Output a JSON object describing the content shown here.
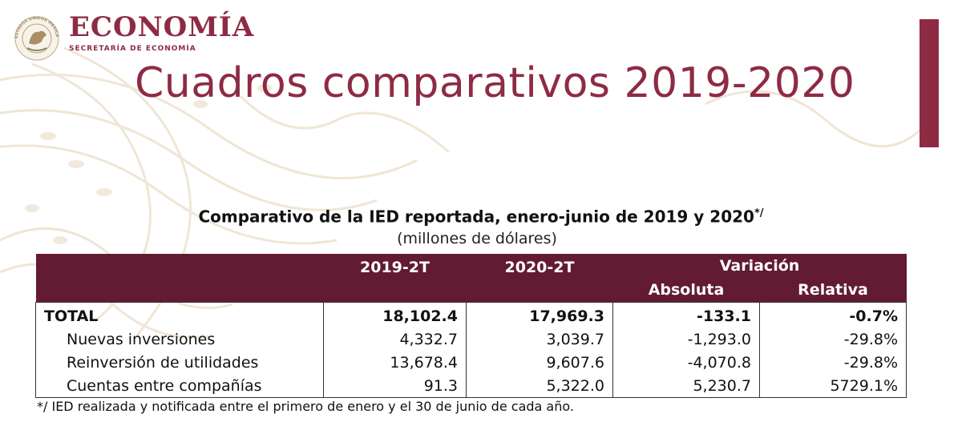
{
  "colors": {
    "brand": "#8e2b44",
    "table_header": "#621b32"
  },
  "header": {
    "brand_name": "ECONOMÍA",
    "brand_subtitle": "SECRETARÍA DE ECONOMÍA",
    "seal_text": "ESTADOS UNIDOS MEXICANOS",
    "title": "Cuadros comparativos 2019-2020"
  },
  "table": {
    "title": "Comparativo de la IED reportada, enero-junio de 2019 y 2020",
    "title_note": "*/",
    "subtitle": "(millones de dólares)",
    "columns": [
      "2019-2T",
      "2020-2T"
    ],
    "variation_label": "Variación",
    "variation_sub": [
      "Absoluta",
      "Relativa"
    ],
    "rows": [
      {
        "label": "TOTAL",
        "v2019": "18,102.4",
        "v2020": "17,969.3",
        "abs": "-133.1",
        "rel": "-0.7%"
      },
      {
        "label": "Nuevas inversiones",
        "v2019": "4,332.7",
        "v2020": "3,039.7",
        "abs": "-1,293.0",
        "rel": "-29.8%"
      },
      {
        "label": "Reinversión de utilidades",
        "v2019": "13,678.4",
        "v2020": "9,607.6",
        "abs": "-4,070.8",
        "rel": "-29.8%"
      },
      {
        "label": "Cuentas entre compañías",
        "v2019": "91.3",
        "v2020": "5,322.0",
        "abs": "5,230.7",
        "rel": "5729.1%"
      }
    ],
    "footnote": "*/ IED realizada y notificada entre el primero de enero y el 30 de junio de cada año."
  }
}
